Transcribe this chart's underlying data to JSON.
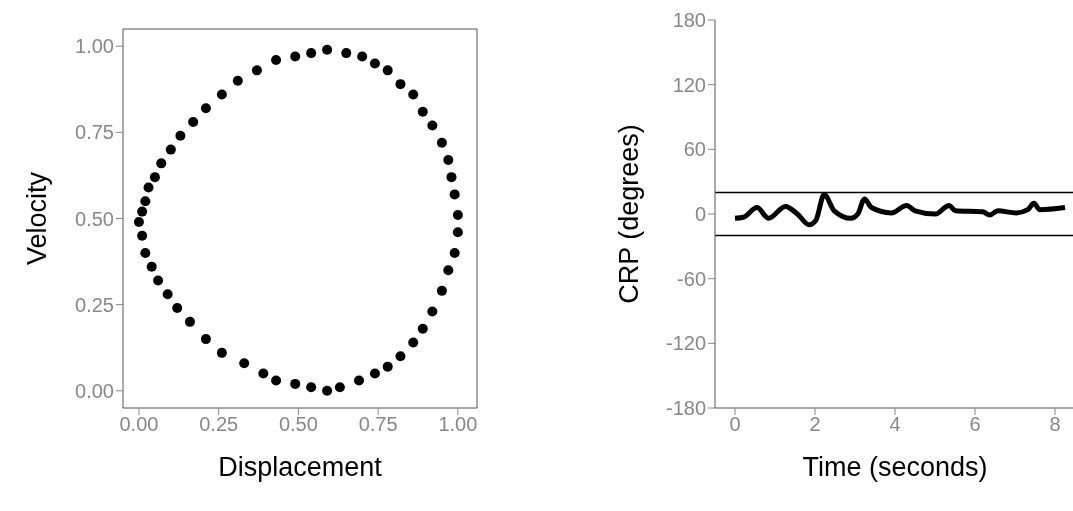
{
  "chart_data": [
    {
      "type": "scatter",
      "xlabel": "Displacement",
      "ylabel": "Velocity",
      "color": "#000000",
      "marker": "circle",
      "grid": false,
      "xlim": [
        -0.05,
        1.06
      ],
      "ylim": [
        -0.05,
        1.05
      ],
      "xticks": [
        {
          "value": 0,
          "label": "0.00"
        },
        {
          "value": 0.25,
          "label": "0.25"
        },
        {
          "value": 0.5,
          "label": "0.50"
        },
        {
          "value": 0.75,
          "label": "0.75"
        },
        {
          "value": 1,
          "label": "1.00"
        }
      ],
      "yticks": [
        {
          "value": 0,
          "label": "0.00"
        },
        {
          "value": 0.25,
          "label": "0.25"
        },
        {
          "value": 0.5,
          "label": "0.50"
        },
        {
          "value": 0.75,
          "label": "0.75"
        },
        {
          "value": 1,
          "label": "1.00"
        }
      ],
      "x": [
        0.59,
        0.54,
        0.49,
        0.43,
        0.37,
        0.31,
        0.26,
        0.21,
        0.17,
        0.13,
        0.1,
        0.07,
        0.05,
        0.03,
        0.02,
        0.01,
        0.0,
        0.01,
        0.02,
        0.04,
        0.06,
        0.09,
        0.12,
        0.16,
        0.21,
        0.26,
        0.33,
        0.39,
        0.43,
        0.49,
        0.54,
        0.59,
        0.63,
        0.69,
        0.74,
        0.78,
        0.82,
        0.86,
        0.89,
        0.92,
        0.95,
        0.97,
        0.99,
        1.0,
        1.0,
        0.99,
        0.98,
        0.97,
        0.95,
        0.92,
        0.89,
        0.86,
        0.82,
        0.78,
        0.74,
        0.7,
        0.65
      ],
      "values": [
        0.99,
        0.98,
        0.97,
        0.96,
        0.93,
        0.9,
        0.86,
        0.82,
        0.78,
        0.74,
        0.7,
        0.66,
        0.62,
        0.59,
        0.55,
        0.52,
        0.49,
        0.45,
        0.4,
        0.36,
        0.32,
        0.28,
        0.24,
        0.2,
        0.15,
        0.11,
        0.08,
        0.05,
        0.03,
        0.02,
        0.01,
        0.0,
        0.01,
        0.03,
        0.05,
        0.07,
        0.1,
        0.14,
        0.18,
        0.23,
        0.29,
        0.35,
        0.4,
        0.46,
        0.51,
        0.57,
        0.62,
        0.67,
        0.72,
        0.77,
        0.81,
        0.86,
        0.89,
        0.93,
        0.95,
        0.97,
        0.98
      ]
    },
    {
      "type": "line",
      "xlabel": "Time (seconds)",
      "ylabel": "CRP (degrees)",
      "color": "#000000",
      "line_style": "solid",
      "grid": false,
      "xlim": [
        -0.5,
        8.5
      ],
      "ylim": [
        -180,
        180
      ],
      "xticks": [
        0,
        2,
        4,
        6,
        8
      ],
      "yticks": [
        -180,
        -120,
        -60,
        0,
        60,
        120,
        180
      ],
      "ref_lines": [
        {
          "axis": "y",
          "value": 20,
          "color": "#000000"
        },
        {
          "axis": "y",
          "value": -20,
          "color": "#000000"
        }
      ],
      "x": [
        0,
        0.21,
        0.55,
        0.84,
        1.26,
        1.56,
        1.85,
        2.02,
        2.23,
        2.48,
        2.9,
        3.07,
        3.24,
        3.41,
        3.91,
        4.29,
        4.5,
        5.01,
        5.35,
        5.51,
        6.19,
        6.37,
        6.57,
        7.03,
        7.32,
        7.47,
        7.62,
        8.25
      ],
      "values": [
        -4,
        -3,
        6,
        -4,
        7,
        0,
        -10,
        -6,
        18,
        3,
        -4,
        0,
        14,
        6,
        1,
        8,
        3,
        0,
        8,
        3,
        2,
        -1,
        3,
        1,
        4,
        10,
        4,
        6
      ]
    }
  ]
}
